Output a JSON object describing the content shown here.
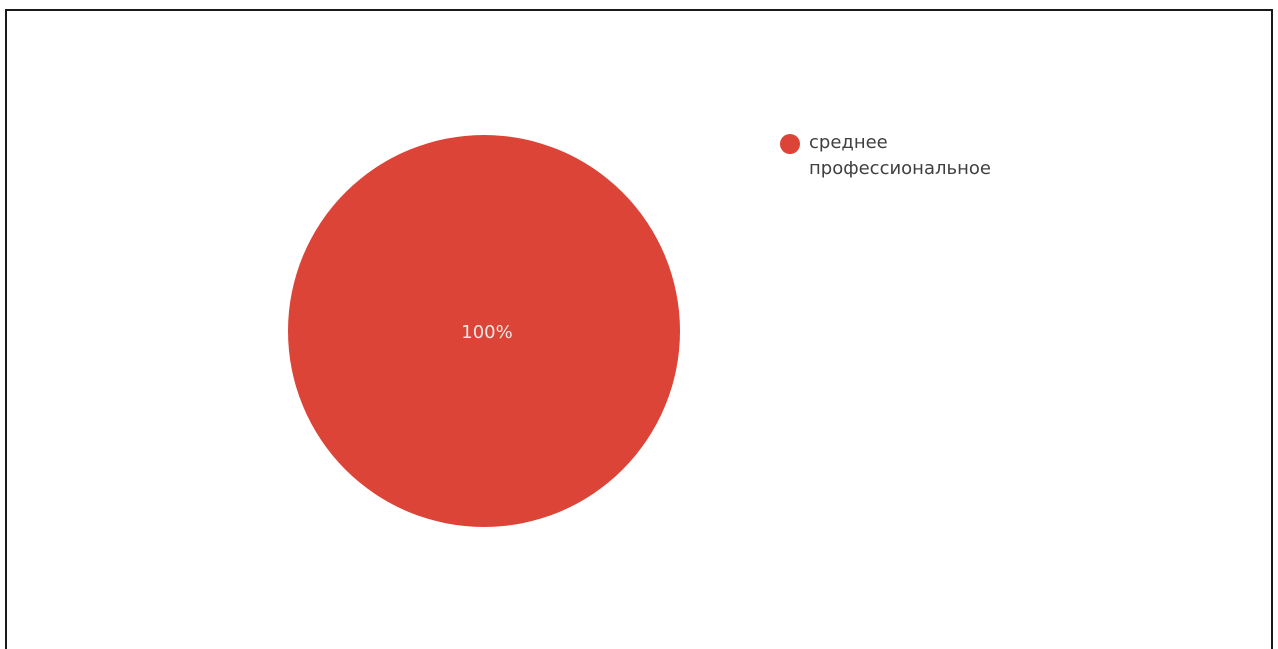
{
  "chart_data": {
    "type": "pie",
    "categories": [
      "среднее профессиональное"
    ],
    "values": [
      100
    ],
    "colors": [
      "#db4437"
    ],
    "data_labels": [
      "100%"
    ],
    "legend": {
      "placement": "right",
      "entries": [
        "среднее профессиональное"
      ]
    }
  }
}
